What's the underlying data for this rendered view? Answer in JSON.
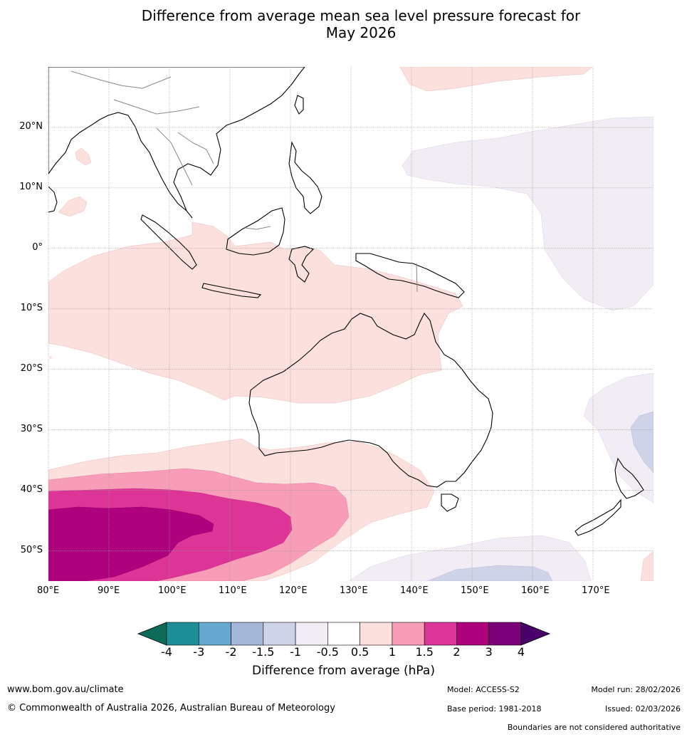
{
  "title": {
    "line1": "Difference from average mean sea level pressure forecast for",
    "line2": "May 2026"
  },
  "map": {
    "latitude_labels": [
      "20°N",
      "10°N",
      "0°",
      "10°S",
      "20°S",
      "30°S",
      "40°S",
      "50°S"
    ],
    "longitude_labels": [
      "80°E",
      "90°E",
      "100°E",
      "110°E",
      "120°E",
      "130°E",
      "140°E",
      "150°E",
      "160°E",
      "170°E"
    ],
    "lat_range": [
      -55,
      30
    ],
    "lon_range": [
      80,
      180
    ]
  },
  "legend": {
    "title": "Difference from average (hPa)",
    "ticks": [
      "-4",
      "-3",
      "-2",
      "-1.5",
      "-1",
      "-0.5",
      "0.5",
      "1",
      "1.5",
      "2",
      "3",
      "4"
    ],
    "colors": {
      "below_-4": "#0d6b5a",
      "-4_-3": "#1e8e96",
      "-3_-2": "#66a8d0",
      "-2_-1.5": "#a4b7d9",
      "-1.5_-1": "#cfd3e7",
      "-1_-0.5": "#f2edf5",
      "-0.5_0.5": "#ffffff",
      "0.5_1": "#fbe0de",
      "1_1.5": "#f79db8",
      "1.5_2": "#dd3497",
      "2_3": "#ae017e",
      "3_4": "#7a0177",
      "above_4": "#49006a"
    }
  },
  "footer": {
    "website": "www.bom.gov.au/climate",
    "copyright": "© Commonwealth of Australia 2026, Australian Bureau of Meteorology",
    "model": "Model: ACCESS-S2",
    "base_period": "Base period: 1981-2018",
    "model_run": "Model run: 28/02/2026",
    "issued": "Issued: 02/03/2026",
    "disclaimer": "Boundaries are not considered authoritative"
  }
}
